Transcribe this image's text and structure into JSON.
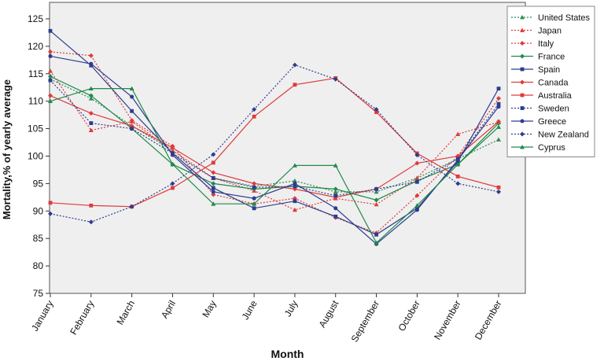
{
  "chart_data": {
    "type": "line",
    "title": "",
    "xlabel": "Month",
    "ylabel": "Mortality,% of yearly average",
    "ylim": [
      75,
      128
    ],
    "yticks": [
      75,
      80,
      85,
      90,
      95,
      100,
      105,
      110,
      115,
      120,
      125
    ],
    "grid": false,
    "legend_position": "top-right",
    "categories": [
      "January",
      "February",
      "March",
      "April",
      "May",
      "June",
      "July",
      "August",
      "September",
      "October",
      "November",
      "December"
    ],
    "series": [
      {
        "name": "United States",
        "color": "#2e8b57",
        "marker": "triangle",
        "dashed": true,
        "values": [
          114.0,
          110.5,
          105.5,
          101.0,
          96.0,
          94.5,
          95.5,
          93.5,
          93.5,
          96.0,
          99.5,
          103.0
        ]
      },
      {
        "name": "Japan",
        "color": "#e03a3a",
        "marker": "triangle",
        "dashed": true,
        "values": [
          115.5,
          104.7,
          106.3,
          101.0,
          96.0,
          93.7,
          90.2,
          92.3,
          91.2,
          96.0,
          104.0,
          106.2
        ]
      },
      {
        "name": "Italy",
        "color": "#e03a3a",
        "marker": "diamond",
        "dashed": true,
        "values": [
          119.0,
          118.3,
          106.5,
          101.8,
          93.0,
          91.3,
          92.3,
          88.8,
          86.0,
          92.8,
          100.0,
          110.5
        ]
      },
      {
        "name": "France",
        "color": "#1e8a4a",
        "marker": "diamond",
        "dashed": false,
        "values": [
          114.5,
          111.0,
          105.0,
          98.5,
          95.0,
          94.0,
          94.5,
          94.0,
          92.0,
          95.5,
          98.5,
          106.0
        ]
      },
      {
        "name": "Spain",
        "color": "#2d3d8f",
        "marker": "square",
        "dashed": false,
        "values": [
          122.8,
          116.5,
          108.2,
          100.5,
          94.2,
          90.5,
          91.8,
          89.0,
          85.7,
          90.5,
          99.0,
          112.3
        ]
      },
      {
        "name": "Canada",
        "color": "#e03a3a",
        "marker": "diamond",
        "dashed": false,
        "values": [
          111.0,
          107.8,
          105.5,
          101.5,
          97.0,
          95.0,
          94.0,
          92.5,
          94.0,
          98.7,
          100.0,
          106.3
        ]
      },
      {
        "name": "Australia",
        "color": "#e03a3a",
        "marker": "square",
        "dashed": false,
        "values": [
          91.5,
          91.0,
          90.8,
          94.2,
          98.8,
          107.2,
          113.0,
          114.2,
          108.0,
          100.5,
          96.3,
          94.3
        ]
      },
      {
        "name": "Sweden",
        "color": "#2d3d8f",
        "marker": "square",
        "dashed": true,
        "values": [
          113.8,
          106.0,
          105.0,
          100.5,
          96.0,
          94.3,
          94.5,
          92.8,
          94.0,
          95.3,
          99.5,
          109.5
        ]
      },
      {
        "name": "Greece",
        "color": "#2d3d8f",
        "marker": "circle",
        "dashed": false,
        "values": [
          118.2,
          116.8,
          110.8,
          100.2,
          93.5,
          92.3,
          95.0,
          90.5,
          84.0,
          90.2,
          99.3,
          109.0
        ]
      },
      {
        "name": "New Zealand",
        "color": "#2d3d8f",
        "marker": "diamond",
        "dashed": true,
        "values": [
          89.5,
          88.0,
          90.8,
          95.0,
          100.3,
          108.5,
          116.6,
          114.0,
          108.5,
          100.2,
          95.0,
          93.5
        ]
      },
      {
        "name": "Cyprus",
        "color": "#1e8a4a",
        "marker": "triangle",
        "dashed": false,
        "values": [
          110.0,
          112.3,
          112.3,
          98.5,
          91.3,
          91.3,
          98.3,
          98.3,
          84.2,
          91.0,
          98.5,
          105.3
        ]
      }
    ]
  }
}
